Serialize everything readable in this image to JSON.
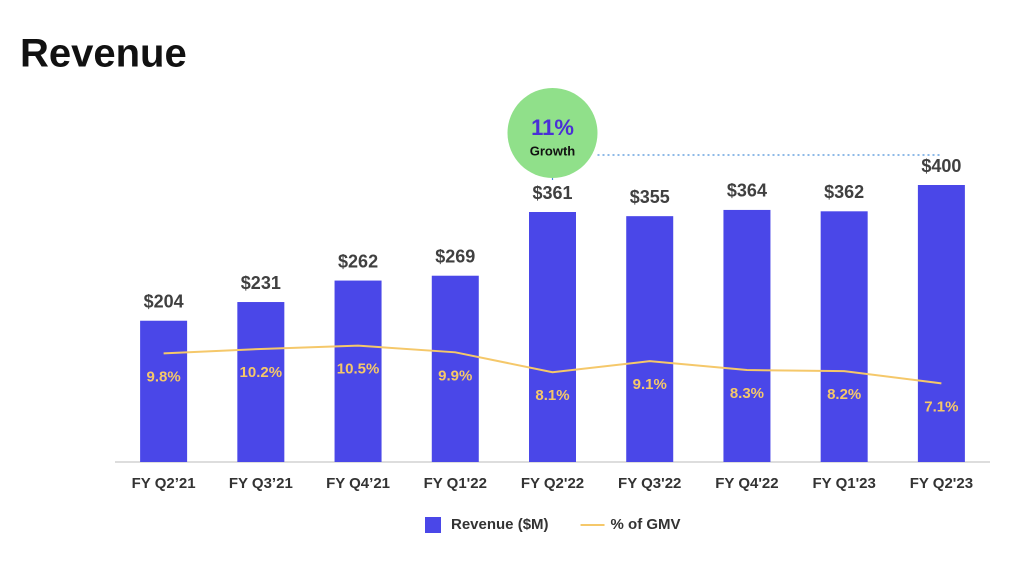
{
  "chart_data": {
    "type": "bar-line",
    "title": "Revenue",
    "categories": [
      "FY Q2’21",
      "FY Q3’21",
      "FY Q4’21",
      "FY Q1'22",
      "FY Q2'22",
      "FY Q3'22",
      "FY Q4'22",
      "FY Q1'23",
      "FY Q2'23"
    ],
    "series": [
      {
        "name": "Revenue ($M)",
        "type": "bar",
        "color": "#4a47e8",
        "values": [
          204,
          231,
          262,
          269,
          361,
          355,
          364,
          362,
          400
        ],
        "value_labels": [
          "$204",
          "$231",
          "$262",
          "$269",
          "$361",
          "$355",
          "$364",
          "$362",
          "$400"
        ]
      },
      {
        "name": "% of GMV",
        "type": "line",
        "axis": "y2",
        "color": "#f5c86a",
        "values": [
          9.8,
          10.2,
          10.5,
          9.9,
          8.1,
          9.1,
          8.3,
          8.2,
          7.1
        ],
        "value_labels": [
          "9.8%",
          "10.2%",
          "10.5%",
          "9.9%",
          "8.1%",
          "9.1%",
          "8.3%",
          "8.2%",
          "7.1%"
        ]
      }
    ],
    "ylim": [
      0,
      400
    ],
    "y2lim": [
      0,
      25
    ],
    "annotation": {
      "text": "11%",
      "subtext": "Growth",
      "color": "#90e08a"
    }
  }
}
